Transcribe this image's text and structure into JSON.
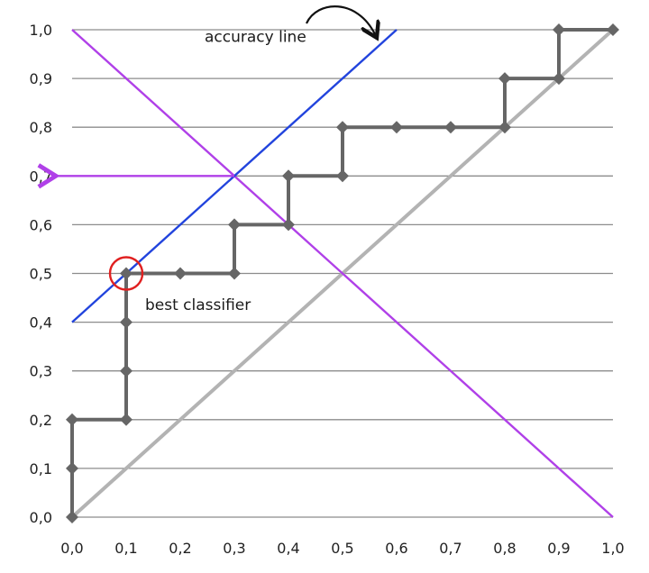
{
  "chart_data": {
    "type": "line",
    "title": "",
    "xlabel": "",
    "ylabel": "",
    "xlim": [
      0,
      1
    ],
    "ylim": [
      0,
      1
    ],
    "grid": true,
    "x_ticks": [
      "0,0",
      "0,1",
      "0,2",
      "0,3",
      "0,4",
      "0,5",
      "0,6",
      "0,7",
      "0,8",
      "0,9",
      "1,0"
    ],
    "y_ticks": [
      "0,0",
      "0,1",
      "0,2",
      "0,3",
      "0,4",
      "0,5",
      "0,6",
      "0,7",
      "0,8",
      "0,9",
      "1,0"
    ],
    "series": [
      {
        "type": "step",
        "color": "#666666",
        "markers": true,
        "points": [
          [
            0,
            0
          ],
          [
            0,
            0.1
          ],
          [
            0,
            0.2
          ],
          [
            0.1,
            0.2
          ],
          [
            0.1,
            0.3
          ],
          [
            0.1,
            0.4
          ],
          [
            0.1,
            0.5
          ],
          [
            0.2,
            0.5
          ],
          [
            0.3,
            0.5
          ],
          [
            0.3,
            0.6
          ],
          [
            0.4,
            0.6
          ],
          [
            0.4,
            0.7
          ],
          [
            0.5,
            0.7
          ],
          [
            0.5,
            0.8
          ],
          [
            0.6,
            0.8
          ],
          [
            0.7,
            0.8
          ],
          [
            0.8,
            0.8
          ],
          [
            0.8,
            0.9
          ],
          [
            0.9,
            0.9
          ],
          [
            0.9,
            1.0
          ],
          [
            1.0,
            1.0
          ]
        ]
      },
      {
        "type": "diagonal",
        "color": "#b3b3b3",
        "points": [
          [
            0,
            0
          ],
          [
            1,
            1
          ]
        ]
      },
      {
        "type": "accuracy-line",
        "color": "#2244dd",
        "points": [
          [
            0,
            0.4
          ],
          [
            0.6,
            1.0
          ]
        ]
      },
      {
        "type": "anti-diagonal",
        "color": "#b040e8",
        "points": [
          [
            0,
            1.0
          ],
          [
            1.0,
            0
          ]
        ]
      },
      {
        "type": "arrow",
        "color": "#b040e8",
        "points": [
          [
            0.3,
            0.7
          ],
          [
            -0.03,
            0.7
          ]
        ]
      }
    ],
    "annotations": [
      {
        "text": "accuracy line",
        "x": 0.245,
        "y": 0.975,
        "color": "#1a1a1a"
      },
      {
        "text": "best classifier",
        "x": 0.135,
        "y": 0.425,
        "color": "#1a1a1a"
      }
    ],
    "highlight": {
      "x": 0.1,
      "y": 0.5,
      "color": "#e02020",
      "shape": "circle"
    }
  }
}
